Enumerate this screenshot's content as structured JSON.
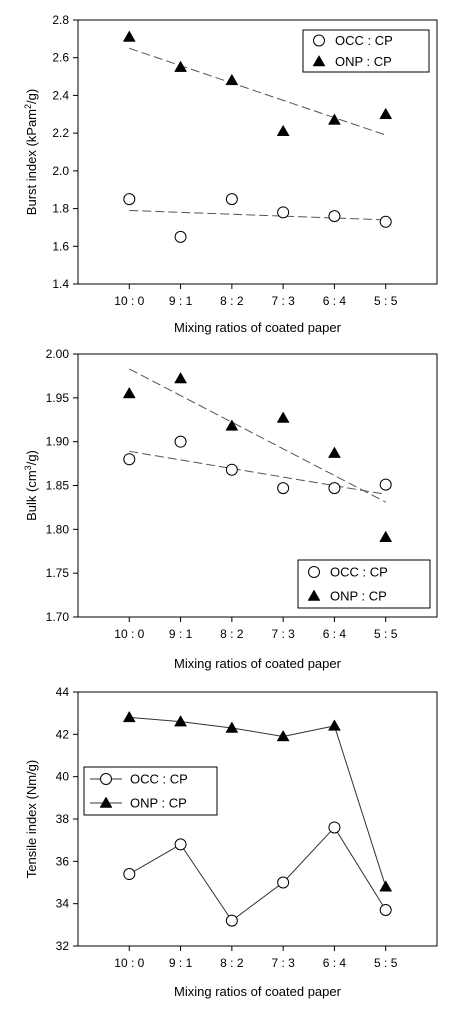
{
  "chart_data": [
    {
      "type": "scatter",
      "xlabel": "Mixing ratios of coated paper",
      "ylabel": "Burst index (kPam²/g)",
      "ylabel_main": "Burst index (kPam",
      "ylabel_sup": "2",
      "ylabel_end": "/g)",
      "categories": [
        "10 : 0",
        "9 : 1",
        "8 : 2",
        "7 : 3",
        "6 : 4",
        "5 : 5"
      ],
      "ylim": [
        1.4,
        2.8
      ],
      "yticks": [
        "1.4",
        "1.6",
        "1.8",
        "2.0",
        "2.2",
        "2.4",
        "2.6",
        "2.8"
      ],
      "legend_position": "top-right",
      "series": [
        {
          "name": "OCC : CP",
          "marker": "circle-open",
          "values": [
            1.85,
            1.65,
            1.85,
            1.78,
            1.76,
            1.73
          ],
          "trend": [
            1.79,
            1.74
          ]
        },
        {
          "name": "ONP : CP",
          "marker": "triangle-filled",
          "values": [
            2.71,
            2.55,
            2.48,
            2.21,
            2.27,
            2.3
          ],
          "trend": [
            2.65,
            2.19
          ]
        }
      ]
    },
    {
      "type": "scatter",
      "xlabel": "Mixing ratios of coated paper",
      "ylabel": "Bulk (cm³/g)",
      "ylabel_main": "Bulk (cm",
      "ylabel_sup": "3",
      "ylabel_end": "/g)",
      "categories": [
        "10 : 0",
        "9 : 1",
        "8 : 2",
        "7 : 3",
        "6 : 4",
        "5 : 5"
      ],
      "ylim": [
        1.7,
        2.0
      ],
      "yticks": [
        "1.70",
        "1.75",
        "1.80",
        "1.85",
        "1.90",
        "1.95",
        "2.00"
      ],
      "legend_position": "bottom-right",
      "series": [
        {
          "name": "OCC : CP",
          "marker": "circle-open",
          "values": [
            1.88,
            1.9,
            1.868,
            1.847,
            1.847,
            1.851
          ],
          "trend": [
            1.889,
            1.84
          ]
        },
        {
          "name": "ONP : CP",
          "marker": "triangle-filled",
          "values": [
            1.955,
            1.972,
            1.918,
            1.927,
            1.887,
            1.791
          ],
          "trend": [
            1.983,
            1.831
          ]
        }
      ]
    },
    {
      "type": "line",
      "xlabel": "Mixing ratios of coated paper",
      "ylabel": "Tensile index (Nm/g)",
      "ylabel_main": "Tensile index (Nm/g)",
      "ylabel_sup": "",
      "ylabel_end": "",
      "categories": [
        "10 : 0",
        "9 : 1",
        "8 : 2",
        "7 : 3",
        "6 : 4",
        "5 : 5"
      ],
      "ylim": [
        32,
        44
      ],
      "yticks": [
        "32",
        "34",
        "36",
        "38",
        "40",
        "42",
        "44"
      ],
      "legend_position": "left-middle",
      "series": [
        {
          "name": "OCC : CP",
          "marker": "circle-open",
          "values": [
            35.4,
            36.8,
            33.2,
            35.0,
            37.6,
            33.7
          ]
        },
        {
          "name": "ONP : CP",
          "marker": "triangle-filled",
          "values": [
            42.8,
            42.6,
            42.3,
            41.9,
            42.4,
            34.8
          ]
        }
      ]
    }
  ]
}
